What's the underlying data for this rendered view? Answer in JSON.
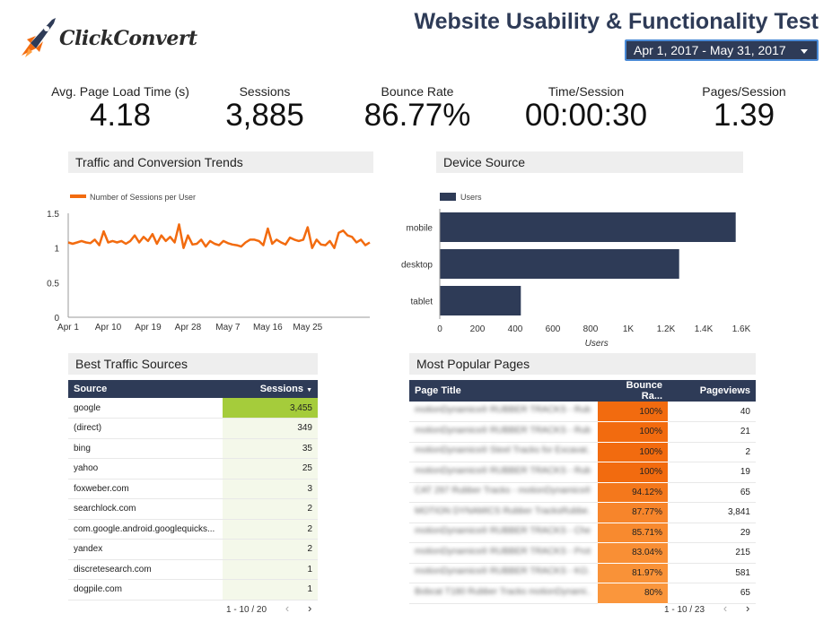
{
  "header": {
    "logo_text": "ClickConvert",
    "title": "Website Usability & Functionality Test",
    "date_range": "Apr 1, 2017 - May 31, 2017"
  },
  "kpis": [
    {
      "label": "Avg. Page Load Time (s)",
      "value": "4.18"
    },
    {
      "label": "Sessions",
      "value": "3,885"
    },
    {
      "label": "Bounce Rate",
      "value": "86.77%"
    },
    {
      "label": "Time/Session",
      "value": "00:00:30"
    },
    {
      "label": "Pages/Session",
      "value": "1.39"
    }
  ],
  "sections": {
    "traffic": "Traffic and Conversion Trends",
    "device": "Device Source",
    "sources": "Best Traffic Sources",
    "pages": "Most Popular Pages"
  },
  "colors": {
    "navy": "#2e3b57",
    "orange": "#f26b0f",
    "green": "#a5cc3b"
  },
  "chart_data": [
    {
      "type": "line",
      "legend": "Number of Sessions per User",
      "ylim": [
        0,
        1.5
      ],
      "yticks": [
        "0",
        "0.5",
        "1",
        "1.5"
      ],
      "xticks": [
        "Apr 1",
        "Apr 10",
        "Apr 19",
        "Apr 28",
        "May 7",
        "May 16",
        "May 25"
      ],
      "series": [
        {
          "name": "Number of Sessions per User",
          "values": [
            1.08,
            1.06,
            1.08,
            1.1,
            1.08,
            1.07,
            1.12,
            1.04,
            1.24,
            1.08,
            1.1,
            1.08,
            1.1,
            1.06,
            1.1,
            1.18,
            1.08,
            1.16,
            1.1,
            1.2,
            1.06,
            1.18,
            1.1,
            1.16,
            1.08,
            1.34,
            1.0,
            1.18,
            1.05,
            1.06,
            1.12,
            1.02,
            1.1,
            1.06,
            1.04,
            1.1,
            1.07,
            1.05,
            1.04,
            1.02,
            1.08,
            1.12,
            1.12,
            1.1,
            1.04,
            1.28,
            1.06,
            1.12,
            1.08,
            1.05,
            1.15,
            1.12,
            1.1,
            1.12,
            1.3,
            1.0,
            1.12,
            1.05,
            1.04,
            1.1,
            1.0,
            1.22,
            1.25,
            1.18,
            1.16,
            1.08,
            1.12,
            1.04,
            1.08
          ]
        }
      ]
    },
    {
      "type": "bar",
      "orientation": "horizontal",
      "legend": "Users",
      "xlabel": "Users",
      "categories": [
        "mobile",
        "desktop",
        "tablet"
      ],
      "values": [
        1570,
        1270,
        430
      ],
      "xlim": [
        0,
        1600
      ],
      "xticks": [
        "0",
        "200",
        "400",
        "600",
        "800",
        "1K",
        "1.2K",
        "1.4K",
        "1.6K"
      ]
    }
  ],
  "sources_table": {
    "headers": [
      "Source",
      "Sessions"
    ],
    "rows": [
      [
        "google",
        "3,455"
      ],
      [
        "(direct)",
        "349"
      ],
      [
        "bing",
        "35"
      ],
      [
        "yahoo",
        "25"
      ],
      [
        "foxweber.com",
        "3"
      ],
      [
        "searchlock.com",
        "2"
      ],
      [
        "com.google.android.googlequicks...",
        "2"
      ],
      [
        "yandex",
        "2"
      ],
      [
        "discretesearch.com",
        "1"
      ],
      [
        "dogpile.com",
        "1"
      ]
    ],
    "pager": "1 - 10 / 20"
  },
  "pages_table": {
    "headers": [
      "Page Title",
      "Bounce Ra...",
      "Pageviews"
    ],
    "rows": [
      [
        "motionDynamics® RUBBER TRACKS - Rub...",
        "100%",
        "40"
      ],
      [
        "motionDynamics® RUBBER TRACKS - Rub...",
        "100%",
        "21"
      ],
      [
        "motionDynamics® Steel Tracks for Excavat...",
        "100%",
        "2"
      ],
      [
        "motionDynamics® RUBBER TRACKS - Rub...",
        "100%",
        "19"
      ],
      [
        "CAT 297 Rubber Tracks - motionDynamics®",
        "94.12%",
        "65"
      ],
      [
        "MOTION DYNAMICS Rubber TracksRubbe...",
        "87.77%",
        "3,841"
      ],
      [
        "motionDynamics® RUBBER TRACKS - Che...",
        "85.71%",
        "29"
      ],
      [
        "motionDynamics® RUBBER TRACKS - Prot...",
        "83.04%",
        "215"
      ],
      [
        "motionDynamics® RUBBER TRACKS - KO...",
        "81.97%",
        "581"
      ],
      [
        "Bobcat T180 Rubber Tracks motionDynami...",
        "80%",
        "65"
      ]
    ],
    "bounce_fractions": [
      1.0,
      1.0,
      1.0,
      1.0,
      0.9412,
      0.8777,
      0.8571,
      0.8304,
      0.8197,
      0.8
    ],
    "pager": "1 - 10 / 23"
  }
}
